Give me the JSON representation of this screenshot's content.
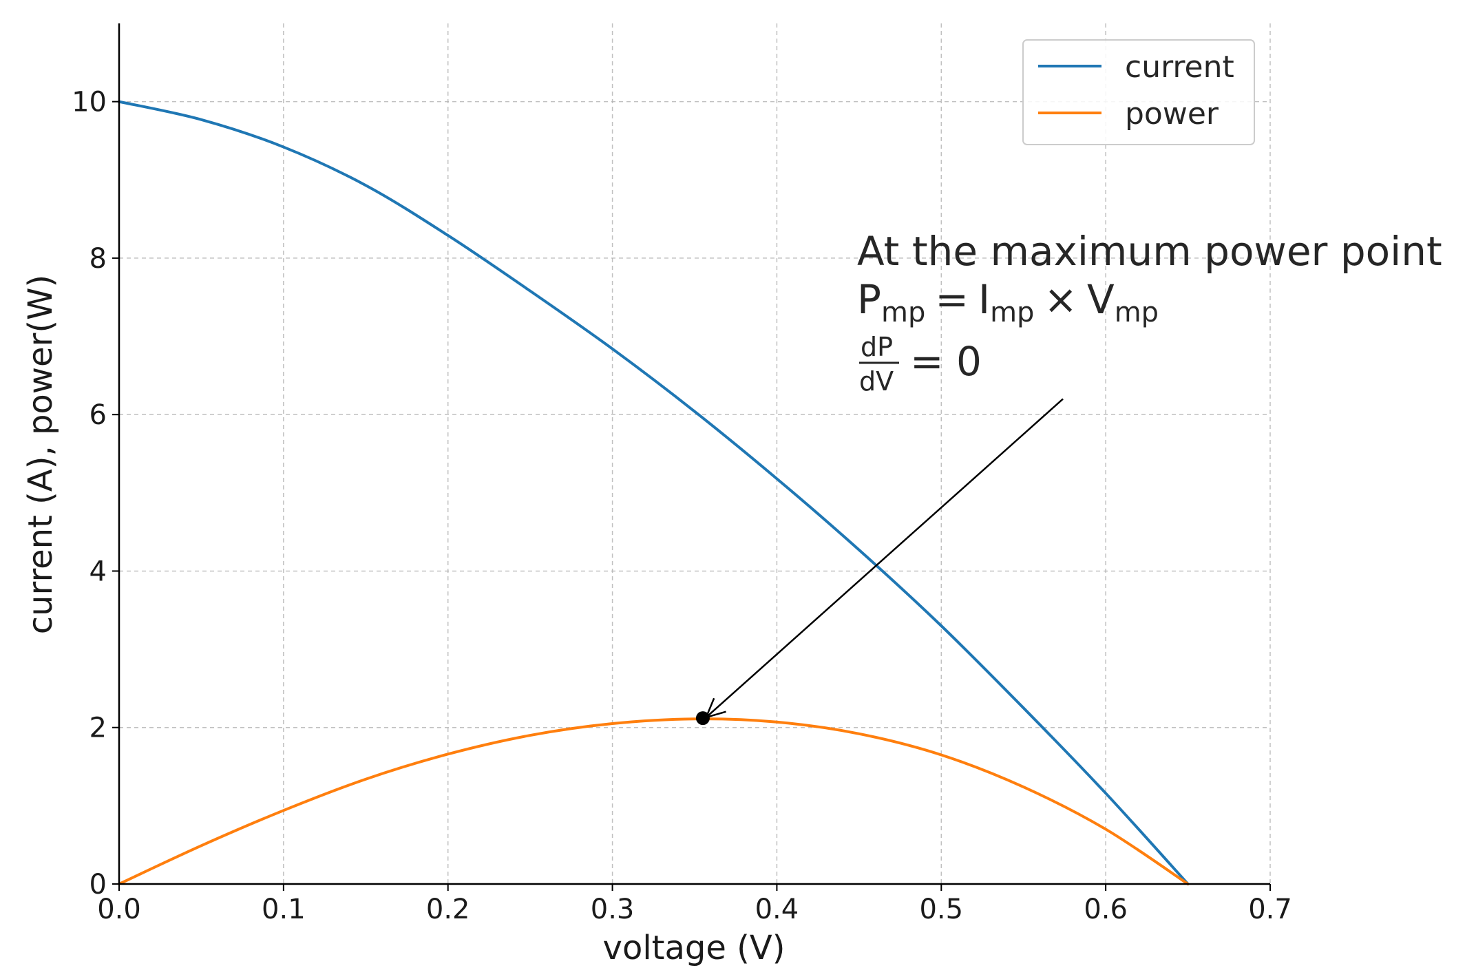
{
  "chart_data": {
    "type": "line",
    "title": "",
    "xlabel": "voltage (V)",
    "ylabel": "current (A), power(W)",
    "xlim": [
      0.0,
      0.7
    ],
    "ylim": [
      0,
      11
    ],
    "grid": true,
    "legend_position": "top-right",
    "xticks": [
      "0.0",
      "0.1",
      "0.2",
      "0.3",
      "0.4",
      "0.5",
      "0.6",
      "0.7"
    ],
    "xtick_values": [
      0.0,
      0.1,
      0.2,
      0.3,
      0.4,
      0.5,
      0.6,
      0.7
    ],
    "yticks": [
      "0",
      "2",
      "4",
      "6",
      "8",
      "10"
    ],
    "ytick_values": [
      0,
      2,
      4,
      6,
      8,
      10
    ],
    "series": [
      {
        "name": "current",
        "color": "#1f77b4",
        "x": [
          0.0,
          0.05,
          0.1,
          0.15,
          0.2,
          0.25,
          0.3,
          0.35,
          0.4,
          0.45,
          0.5,
          0.55,
          0.6,
          0.65
        ],
        "y": [
          10.0,
          9.77,
          9.42,
          8.93,
          8.29,
          7.58,
          6.84,
          6.04,
          5.18,
          4.27,
          3.3,
          2.25,
          1.16,
          0.0
        ]
      },
      {
        "name": "power",
        "color": "#ff7f0e",
        "x": [
          0.0,
          0.05,
          0.1,
          0.15,
          0.2,
          0.25,
          0.3,
          0.35,
          0.4,
          0.45,
          0.5,
          0.55,
          0.6,
          0.65
        ],
        "y": [
          0.0,
          0.49,
          0.94,
          1.34,
          1.66,
          1.9,
          2.05,
          2.11,
          2.07,
          1.92,
          1.65,
          1.24,
          0.7,
          0.0
        ]
      }
    ],
    "marker": {
      "label": "maximum power point",
      "x": 0.355,
      "y": 2.12,
      "color": "#000000"
    },
    "annotation": {
      "line1": "At the maximum power point",
      "pmp_P": "P",
      "pmp_sub": "mp",
      "equals": "=",
      "imp_I": "I",
      "imp_sub": "mp",
      "times": "×",
      "vmp_V": "V",
      "vmp_sub": "mp",
      "frac_num": "dP",
      "frac_den": "dV",
      "eq_zero": "= 0",
      "arrow_from": {
        "x": 0.574,
        "y": 6.2
      },
      "arrow_to": {
        "x": 0.357,
        "y": 2.13
      }
    }
  }
}
